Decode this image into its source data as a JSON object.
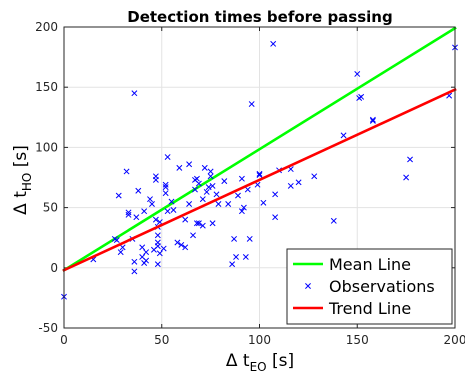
{
  "chart_data": {
    "type": "scatter",
    "title": "Detection times before passing",
    "xlabel": {
      "prefix": "Δ t",
      "sub": "EO",
      "suffix": " [s]"
    },
    "ylabel": {
      "prefix": "Δ t",
      "sub": "HO",
      "suffix": " [s]"
    },
    "xlim": [
      0,
      200
    ],
    "ylim": [
      -50,
      200
    ],
    "xticks": [
      0,
      50,
      100,
      150,
      200
    ],
    "yticks": [
      -50,
      0,
      50,
      100,
      150,
      200
    ],
    "grid": true,
    "legend_position": "bottom-right",
    "series": [
      {
        "name": "Mean Line",
        "kind": "line",
        "color": "#00ff00",
        "points": [
          [
            0,
            -2
          ],
          [
            200,
            199
          ]
        ]
      },
      {
        "name": "Observations",
        "kind": "scatter",
        "marker": "x",
        "color": "#0000ff",
        "points": [
          [
            0,
            -24
          ],
          [
            15,
            7
          ],
          [
            26,
            24
          ],
          [
            27,
            23
          ],
          [
            28,
            60
          ],
          [
            29,
            13
          ],
          [
            30,
            17
          ],
          [
            32,
            80
          ],
          [
            33,
            46
          ],
          [
            33,
            44
          ],
          [
            35,
            24
          ],
          [
            36,
            145
          ],
          [
            36,
            5
          ],
          [
            37,
            42
          ],
          [
            36,
            -3
          ],
          [
            38,
            64
          ],
          [
            40,
            9
          ],
          [
            40,
            17
          ],
          [
            41,
            47
          ],
          [
            41,
            4
          ],
          [
            42,
            6
          ],
          [
            42,
            13
          ],
          [
            44,
            57
          ],
          [
            45,
            53
          ],
          [
            46,
            15
          ],
          [
            47,
            40
          ],
          [
            47,
            73
          ],
          [
            47,
            76
          ],
          [
            48,
            21
          ],
          [
            48,
            18
          ],
          [
            48,
            34
          ],
          [
            48,
            27
          ],
          [
            48,
            3
          ],
          [
            49,
            38
          ],
          [
            49,
            12
          ],
          [
            51,
            16
          ],
          [
            52,
            62
          ],
          [
            52,
            67
          ],
          [
            52,
            69
          ],
          [
            53,
            92
          ],
          [
            53,
            47
          ],
          [
            55,
            55
          ],
          [
            56,
            48
          ],
          [
            58,
            21
          ],
          [
            59,
            83
          ],
          [
            60,
            19
          ],
          [
            62,
            17
          ],
          [
            62,
            40
          ],
          [
            64,
            86
          ],
          [
            64,
            53
          ],
          [
            66,
            27
          ],
          [
            67,
            65
          ],
          [
            67,
            73
          ],
          [
            68,
            74
          ],
          [
            68,
            37
          ],
          [
            69,
            37
          ],
          [
            69,
            70
          ],
          [
            71,
            35
          ],
          [
            71,
            57
          ],
          [
            72,
            83
          ],
          [
            73,
            63
          ],
          [
            74,
            67
          ],
          [
            75,
            76
          ],
          [
            75,
            80
          ],
          [
            76,
            37
          ],
          [
            76,
            68
          ],
          [
            78,
            61
          ],
          [
            79,
            53
          ],
          [
            82,
            72
          ],
          [
            84,
            53
          ],
          [
            86,
            3
          ],
          [
            87,
            24
          ],
          [
            88,
            9
          ],
          [
            89,
            60
          ],
          [
            91,
            74
          ],
          [
            91,
            47
          ],
          [
            92,
            50
          ],
          [
            93,
            9
          ],
          [
            94,
            65
          ],
          [
            95,
            24
          ],
          [
            96,
            136
          ],
          [
            99,
            69
          ],
          [
            100,
            78
          ],
          [
            100,
            77
          ],
          [
            102,
            54
          ],
          [
            107,
            186
          ],
          [
            108,
            61
          ],
          [
            108,
            42
          ],
          [
            110,
            81
          ],
          [
            116,
            82
          ],
          [
            116,
            68
          ],
          [
            120,
            71
          ],
          [
            128,
            76
          ],
          [
            138,
            39
          ],
          [
            143,
            110
          ],
          [
            150,
            161
          ],
          [
            151,
            141
          ],
          [
            152,
            142
          ],
          [
            158,
            122
          ],
          [
            158,
            123
          ],
          [
            175,
            75
          ],
          [
            177,
            90
          ],
          [
            197,
            143
          ],
          [
            200,
            183
          ]
        ]
      },
      {
        "name": "Trend Line",
        "kind": "line",
        "color": "#ff0000",
        "points": [
          [
            0,
            -2
          ],
          [
            200,
            148
          ]
        ]
      }
    ]
  }
}
